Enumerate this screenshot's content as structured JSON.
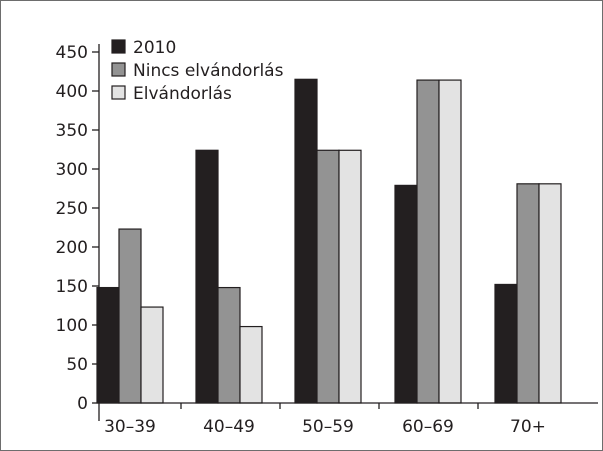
{
  "chart_data": {
    "type": "bar",
    "title": "",
    "xlabel": "",
    "ylabel": "",
    "categories": [
      "30–39",
      "40–49",
      "50–59",
      "60–69",
      "70+"
    ],
    "ylim": [
      0,
      450
    ],
    "yticks": [
      0,
      50,
      100,
      150,
      200,
      250,
      300,
      350,
      400,
      450
    ],
    "grid": false,
    "legend_position": "top-left",
    "series": [
      {
        "name": "2010",
        "values": [
          148,
          324,
          415,
          279,
          152
        ],
        "color": "#231f20"
      },
      {
        "name": "Nincs elvándorlás",
        "values": [
          223,
          148,
          324,
          414,
          281
        ],
        "color": "#939393"
      },
      {
        "name": "Elvándorlás",
        "values": [
          123,
          98,
          324,
          414,
          281
        ],
        "color": "#e3e3e3"
      }
    ]
  }
}
